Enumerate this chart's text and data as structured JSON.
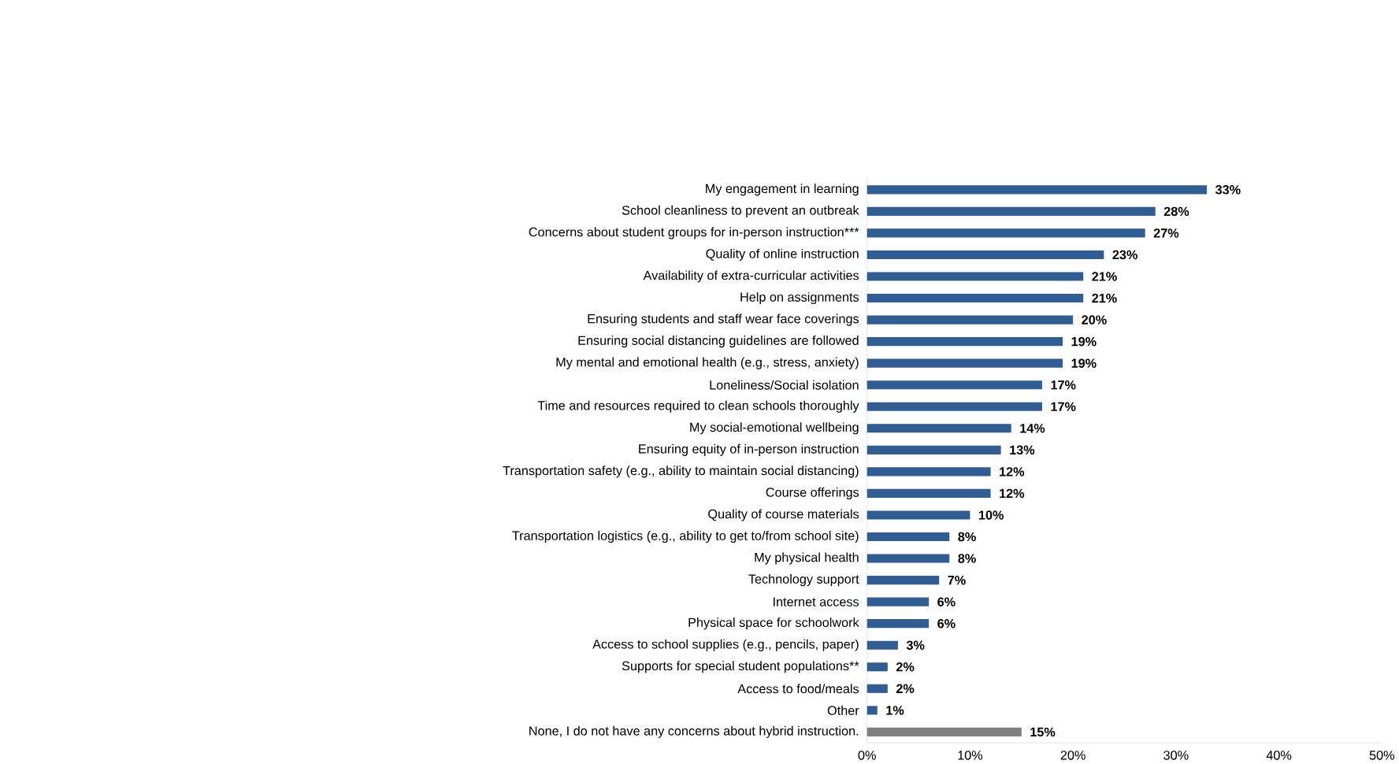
{
  "chart_data": {
    "type": "bar",
    "orientation": "horizontal",
    "categories": [
      "My engagement in learning",
      "School cleanliness to prevent an outbreak",
      "Concerns about student groups for in-person instruction***",
      "Quality of online instruction",
      "Availability of extra-curricular activities",
      "Help on assignments",
      "Ensuring students and staff wear face coverings",
      "Ensuring social distancing guidelines are followed",
      "My mental and emotional health (e.g., stress, anxiety)",
      "Loneliness/Social isolation",
      "Time and resources required to clean schools thoroughly",
      "My social-emotional wellbeing",
      "Ensuring equity of in-person instruction",
      "Transportation safety (e.g., ability to maintain social distancing)",
      "Course offerings",
      "Quality of course materials",
      "Transportation logistics (e.g., ability to get to/from school site)",
      "My physical health",
      "Technology support",
      "Internet access",
      "Physical space for schoolwork",
      "Access to school supplies (e.g., pencils, paper)",
      "Supports for special student populations**",
      "Access to food/meals",
      "Other",
      "None, I do not have any concerns about hybrid instruction."
    ],
    "values": [
      33,
      28,
      27,
      23,
      21,
      21,
      20,
      19,
      19,
      17,
      17,
      14,
      13,
      12,
      12,
      10,
      8,
      8,
      7,
      6,
      6,
      3,
      2,
      2,
      1,
      15
    ],
    "value_labels": [
      "33%",
      "28%",
      "27%",
      "23%",
      "21%",
      "21%",
      "20%",
      "19%",
      "19%",
      "17%",
      "17%",
      "14%",
      "13%",
      "12%",
      "12%",
      "10%",
      "8%",
      "8%",
      "7%",
      "6%",
      "6%",
      "3%",
      "2%",
      "2%",
      "1%",
      "15%"
    ],
    "colors": [
      "#2f5d94",
      "#2f5d94",
      "#2f5d94",
      "#2f5d94",
      "#2f5d94",
      "#2f5d94",
      "#2f5d94",
      "#2f5d94",
      "#2f5d94",
      "#2f5d94",
      "#2f5d94",
      "#2f5d94",
      "#2f5d94",
      "#2f5d94",
      "#2f5d94",
      "#2f5d94",
      "#2f5d94",
      "#2f5d94",
      "#2f5d94",
      "#2f5d94",
      "#2f5d94",
      "#2f5d94",
      "#2f5d94",
      "#2f5d94",
      "#2f5d94",
      "#7f7f7f"
    ],
    "xlim": [
      0,
      50
    ],
    "xticks": [
      {
        "value": 0,
        "label": "0%"
      },
      {
        "value": 10,
        "label": "10%"
      },
      {
        "value": 20,
        "label": "20%"
      },
      {
        "value": 30,
        "label": "30%"
      },
      {
        "value": 40,
        "label": "40%"
      },
      {
        "value": 50,
        "label": "50%"
      }
    ]
  }
}
